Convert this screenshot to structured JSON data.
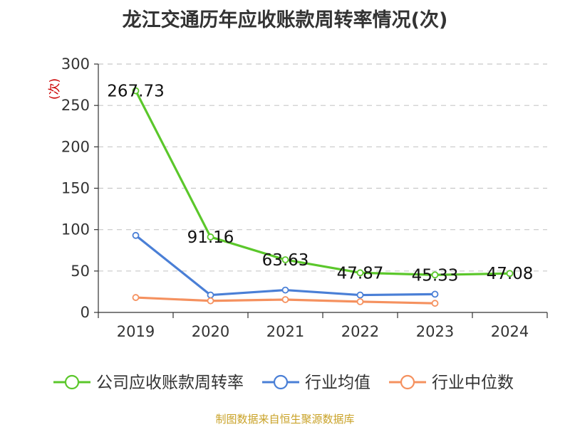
{
  "title": "龙江交通历年应收账款周转率情况(次)",
  "source": "制图数据来自恒生聚源数据库",
  "colors": {
    "company": "#5bc72b",
    "industry_avg": "#4a7fd6",
    "industry_median": "#f5915f",
    "grid": "#c8c8c8",
    "axis": "#333333",
    "unit": "#cc0000"
  },
  "chart_data": {
    "type": "line",
    "title": "龙江交通历年应收账款周转率情况(次)",
    "ylabel": "(次)",
    "xlabel": "",
    "categories": [
      "2019",
      "2020",
      "2021",
      "2022",
      "2023",
      "2024"
    ],
    "ylim": [
      0,
      300
    ],
    "yticks": [
      0,
      50,
      100,
      150,
      200,
      250,
      300
    ],
    "grid": true,
    "legend_position": "bottom",
    "series": [
      {
        "name": "公司应收账款周转率",
        "color": "#5bc72b",
        "values": [
          267.73,
          91.16,
          63.63,
          47.87,
          45.33,
          47.08
        ],
        "labels": [
          "267.73",
          "91.16",
          "63.63",
          "47.87",
          "45.33",
          "47.08"
        ]
      },
      {
        "name": "行业均值",
        "color": "#4a7fd6",
        "values": [
          93,
          21,
          27,
          21,
          22,
          null
        ]
      },
      {
        "name": "行业中位数",
        "color": "#f5915f",
        "values": [
          18,
          14,
          15.5,
          13,
          11,
          null
        ]
      }
    ]
  }
}
